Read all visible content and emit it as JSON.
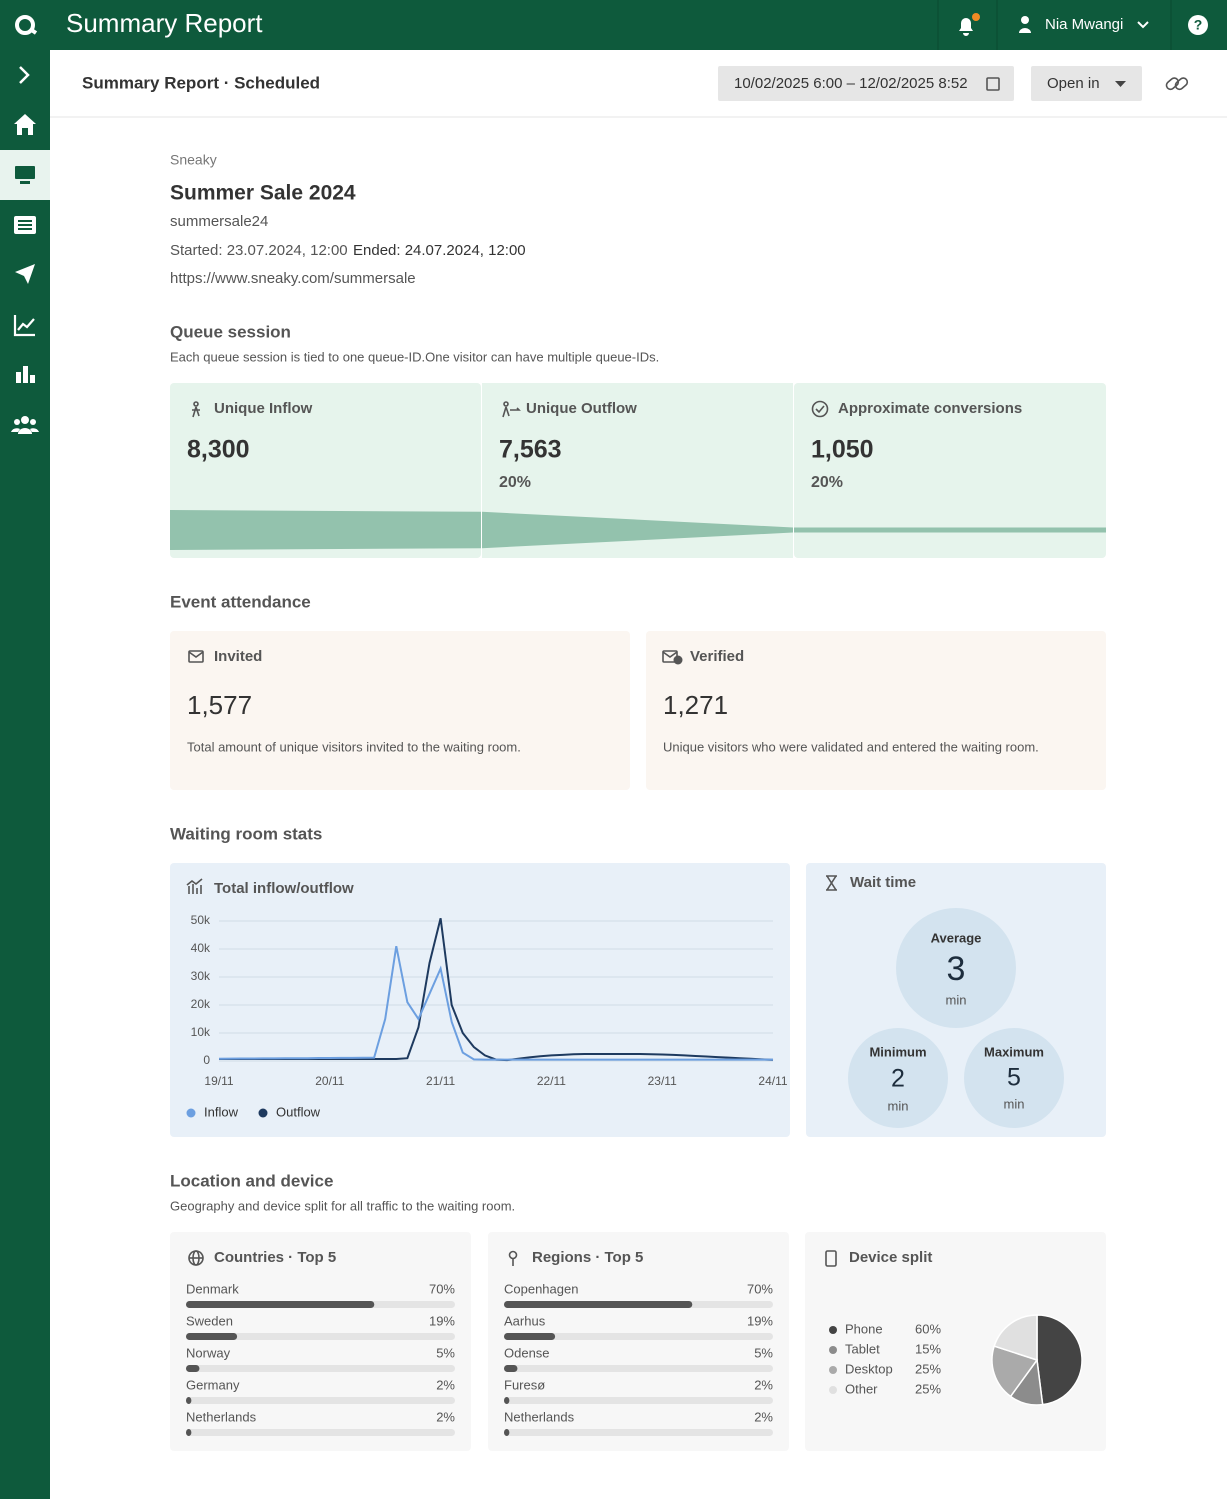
{
  "header": {
    "title": "Summary Report",
    "user": "Nia Mwangi"
  },
  "toolbar": {
    "title": "Summary Report · Scheduled",
    "date_range": "10/02/2025 6:00 – 12/02/2025 8:52",
    "open_in": "Open in"
  },
  "event": {
    "brand": "Sneaky",
    "name": "Summer Sale 2024",
    "id": "summersale24",
    "started": "Started: 23.07.2024, 12:00",
    "ended": "Ended: 24.07.2024, 12:00",
    "url": "https://www.sneaky.com/summersale"
  },
  "queue_session": {
    "title": "Queue session",
    "description": "Each queue session is tied to one queue-ID.One visitor can have multiple queue-IDs.",
    "color": "#93c2ad",
    "cards": [
      {
        "label": "Unique Inflow",
        "value": 8300,
        "value_label": "8,300"
      },
      {
        "label": "Unique Outflow",
        "value": 7563,
        "value_label": "7,563",
        "share": 20,
        "share_label": "20%"
      },
      {
        "label": "Approximate conversions",
        "value": 1050,
        "value_label": "1,050",
        "share": 20,
        "share_label": "20%"
      }
    ]
  },
  "event_attendance": {
    "title": "Event attendance",
    "cards": [
      {
        "label": "Invited",
        "value": 1577,
        "value_label": "1,577",
        "description": "Total amount of unique visitors invited to the waiting room."
      },
      {
        "label": "Verified",
        "value": 1271,
        "value_label": "1,271",
        "description": "Unique visitors who were validated and entered the waiting room."
      }
    ]
  },
  "waiting_room": {
    "title": "Waiting room stats",
    "chart": {
      "type": "line",
      "title": "Total inflow/outflow",
      "categories": [
        "19/11",
        null,
        null,
        null,
        null,
        null,
        null,
        null,
        null,
        null,
        "20/11",
        null,
        null,
        null,
        null,
        null,
        null,
        null,
        null,
        null,
        "21/11",
        null,
        null,
        null,
        null,
        null,
        null,
        null,
        null,
        null,
        "22/11",
        null,
        null,
        null,
        null,
        null,
        null,
        null,
        null,
        null,
        "23/11",
        null,
        null,
        null,
        null,
        null,
        null,
        null,
        null,
        null,
        "24/11"
      ],
      "series": [
        {
          "name": "Inflow",
          "color": "#6c9fe0",
          "values": [
            800,
            850,
            900,
            900,
            950,
            950,
            1000,
            1000,
            1000,
            1050,
            1050,
            1100,
            1100,
            1150,
            1200,
            15000,
            41000,
            21000,
            15000,
            24000,
            33000,
            14000,
            3000,
            600,
            500,
            500,
            500,
            500,
            500,
            500,
            500,
            500,
            500,
            500,
            500,
            500,
            500,
            500,
            500,
            500,
            500,
            500,
            500,
            500,
            500,
            500,
            500,
            500,
            500,
            500,
            500
          ]
        },
        {
          "name": "Outflow",
          "color": "#1e3a5f",
          "values": [
            700,
            700,
            700,
            700,
            700,
            700,
            700,
            700,
            700,
            700,
            700,
            700,
            700,
            700,
            700,
            700,
            700,
            1000,
            12000,
            35000,
            51000,
            20000,
            10000,
            5000,
            2000,
            500,
            300,
            800,
            1300,
            1700,
            2000,
            2200,
            2400,
            2500,
            2500,
            2500,
            2500,
            2500,
            2500,
            2400,
            2300,
            2200,
            2000,
            1800,
            1600,
            1400,
            1200,
            1000,
            800,
            600,
            400
          ]
        }
      ],
      "ylim": [
        0,
        50000
      ],
      "yticks": [
        0,
        {
          "value": 10000,
          "label": "10k"
        },
        {
          "value": 20000,
          "label": "20k"
        },
        {
          "value": 30000,
          "label": "30k"
        },
        {
          "value": 40000,
          "label": "40k"
        },
        {
          "value": 50000,
          "label": "50k"
        }
      ],
      "grid": true
    },
    "wait_time": {
      "title": "Wait time",
      "unit": "min",
      "average": {
        "label": "Average",
        "value": 3
      },
      "minimum": {
        "label": "Minimum",
        "value": 2
      },
      "maximum": {
        "label": "Maximum",
        "value": 5
      }
    }
  },
  "location": {
    "title": "Location and device",
    "description": "Geography and device split for all traffic to the waiting room.",
    "countries": {
      "type": "bar",
      "title": "Countries · Top 5",
      "color": "#555555",
      "categories": [
        "Denmark",
        "Sweden",
        "Norway",
        "Germany",
        "Netherlands"
      ],
      "values": [
        70,
        19,
        5,
        2,
        2
      ],
      "value_labels": [
        "70%",
        "19%",
        "5%",
        "2%",
        "2%"
      ]
    },
    "regions": {
      "type": "bar",
      "title": "Regions · Top 5",
      "color": "#555555",
      "categories": [
        "Copenhagen",
        "Aarhus",
        "Odense",
        "Furesø",
        "Netherlands"
      ],
      "values": [
        70,
        19,
        5,
        2,
        2
      ],
      "value_labels": [
        "70%",
        "19%",
        "5%",
        "2%",
        "2%"
      ]
    },
    "device": {
      "type": "pie",
      "title": "Device split",
      "categories": [
        "Phone",
        "Tablet",
        "Desktop",
        "Other"
      ],
      "values": [
        60,
        15,
        25,
        25
      ],
      "value_labels": [
        "60%",
        "15%",
        "25%",
        "25%"
      ],
      "colors": [
        "#444444",
        "#8c8c8c",
        "#aaaaaa",
        "#e0e0e0"
      ]
    }
  }
}
